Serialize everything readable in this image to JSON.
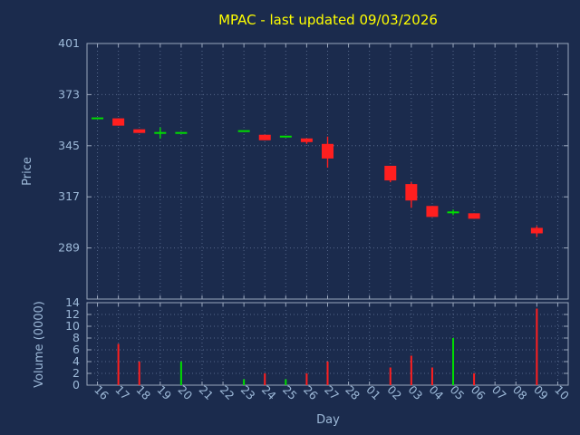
{
  "colors": {
    "background": "#1b2b4d",
    "title": "#ffff00",
    "axis_text": "#9db9d8",
    "grid": "#55678a",
    "border": "#9aa7bd",
    "up": "#00dd00",
    "down": "#ff1f1f"
  },
  "chart_data": {
    "type": "candlestick",
    "title": "MPAC - last updated 09/03/2026",
    "xlabel": "Day",
    "grid": "dotted",
    "legend_position": "none",
    "price_axis": {
      "label": "Price",
      "range": [
        261,
        401
      ],
      "ticks": [
        289,
        317,
        345,
        373,
        401
      ]
    },
    "volume_axis": {
      "label": "Volume (0000)",
      "range": [
        0,
        14
      ],
      "ticks": [
        0,
        2,
        4,
        6,
        8,
        10,
        12,
        14
      ]
    },
    "days": [
      "16",
      "17",
      "18",
      "19",
      "20",
      "21",
      "22",
      "23",
      "24",
      "25",
      "26",
      "27",
      "28",
      "01",
      "02",
      "03",
      "04",
      "05",
      "06",
      "07",
      "08",
      "09",
      "10"
    ],
    "candles": [
      {
        "day": "16",
        "open": 360,
        "high": 360,
        "low": 360,
        "close": 360,
        "volume": 0
      },
      {
        "day": "17",
        "open": 360,
        "high": 360,
        "low": 356,
        "close": 356,
        "volume": 7
      },
      {
        "day": "18",
        "open": 354,
        "high": 354,
        "low": 352,
        "close": 352,
        "volume": 4
      },
      {
        "day": "19",
        "open": 352,
        "high": 355,
        "low": 349,
        "close": 352,
        "volume": 0
      },
      {
        "day": "20",
        "open": 352,
        "high": 352,
        "low": 352,
        "close": 352,
        "volume": 4
      },
      {
        "day": "23",
        "open": 353,
        "high": 353,
        "low": 353,
        "close": 353,
        "volume": 1
      },
      {
        "day": "24",
        "open": 351,
        "high": 351,
        "low": 348,
        "close": 348,
        "volume": 2
      },
      {
        "day": "25",
        "open": 350,
        "high": 350,
        "low": 350,
        "close": 350,
        "volume": 1
      },
      {
        "day": "26",
        "open": 349,
        "high": 349,
        "low": 346,
        "close": 347,
        "volume": 2
      },
      {
        "day": "27",
        "open": 346,
        "high": 350,
        "low": 333,
        "close": 338,
        "volume": 4
      },
      {
        "day": "02",
        "open": 334,
        "high": 334,
        "low": 325,
        "close": 326,
        "volume": 3
      },
      {
        "day": "03",
        "open": 324,
        "high": 325,
        "low": 311,
        "close": 315,
        "volume": 5
      },
      {
        "day": "04",
        "open": 312,
        "high": 312,
        "low": 306,
        "close": 306,
        "volume": 3
      },
      {
        "day": "05",
        "open": 308,
        "high": 310,
        "low": 307,
        "close": 309,
        "volume": 8
      },
      {
        "day": "06",
        "open": 308,
        "high": 308,
        "low": 305,
        "close": 305,
        "volume": 2
      },
      {
        "day": "09",
        "open": 300,
        "high": 301,
        "low": 295,
        "close": 297,
        "volume": 13
      }
    ]
  }
}
